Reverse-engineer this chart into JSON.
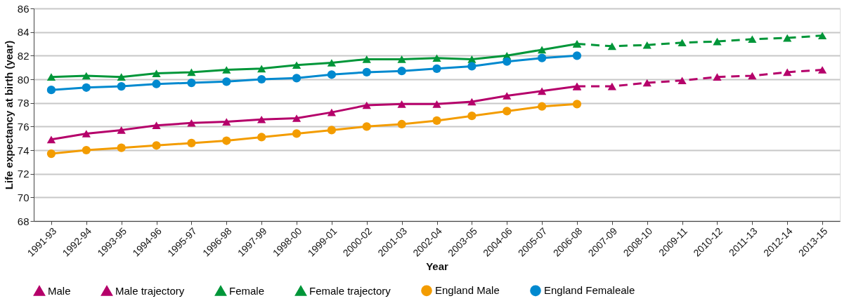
{
  "chart_data": {
    "type": "line",
    "xlabel": "Year",
    "ylabel": "Life expectancy at birth (year)",
    "categories": [
      "1991-93",
      "1992-94",
      "1993-95",
      "1994-96",
      "1995-97",
      "1996-98",
      "1997-99",
      "1998-00",
      "1999-01",
      "2000-02",
      "2001-03",
      "2002-04",
      "2003-05",
      "2004-06",
      "2005-07",
      "2006-08",
      "2007-09",
      "2008-10",
      "2009-11",
      "2010-12",
      "2011-13",
      "2012-14",
      "2013-15"
    ],
    "ylim": [
      68,
      86
    ],
    "yticks": [
      68,
      70,
      72,
      74,
      76,
      78,
      80,
      82,
      84,
      86
    ],
    "grid": "y",
    "legend": "bottom",
    "series": [
      {
        "name": "Male",
        "color": "#b5006a",
        "marker": "triangle",
        "line_style": "solid",
        "values": [
          74.9,
          75.4,
          75.7,
          76.1,
          76.3,
          76.4,
          76.6,
          76.7,
          77.2,
          77.8,
          77.9,
          77.9,
          78.1,
          78.6,
          79.0,
          79.4,
          null,
          null,
          null,
          null,
          null,
          null,
          null
        ]
      },
      {
        "name": "Male trajectory",
        "color": "#b5006a",
        "marker": "triangle",
        "line_style": "dashed",
        "values": [
          null,
          null,
          null,
          null,
          null,
          null,
          null,
          null,
          null,
          null,
          null,
          null,
          null,
          null,
          null,
          79.4,
          79.4,
          79.7,
          79.9,
          80.2,
          80.3,
          80.6,
          80.8
        ]
      },
      {
        "name": "Female",
        "color": "#009639",
        "marker": "triangle",
        "line_style": "solid",
        "values": [
          80.2,
          80.3,
          80.2,
          80.5,
          80.6,
          80.8,
          80.9,
          81.2,
          81.4,
          81.7,
          81.7,
          81.8,
          81.7,
          82.0,
          82.5,
          83.0,
          null,
          null,
          null,
          null,
          null,
          null,
          null
        ]
      },
      {
        "name": "Female trajectory",
        "color": "#009639",
        "marker": "triangle",
        "line_style": "dashed",
        "values": [
          null,
          null,
          null,
          null,
          null,
          null,
          null,
          null,
          null,
          null,
          null,
          null,
          null,
          null,
          null,
          83.0,
          82.8,
          82.9,
          83.1,
          83.2,
          83.4,
          83.5,
          83.7
        ]
      },
      {
        "name": "England Male",
        "color": "#f39c00",
        "marker": "circle",
        "line_style": "solid",
        "values": [
          73.7,
          74.0,
          74.2,
          74.4,
          74.6,
          74.8,
          75.1,
          75.4,
          75.7,
          76.0,
          76.2,
          76.5,
          76.9,
          77.3,
          77.7,
          77.9,
          null,
          null,
          null,
          null,
          null,
          null,
          null
        ]
      },
      {
        "name": "England Femaleale",
        "color": "#0089cf",
        "marker": "circle",
        "line_style": "solid",
        "values": [
          79.1,
          79.3,
          79.4,
          79.6,
          79.7,
          79.8,
          80.0,
          80.1,
          80.4,
          80.6,
          80.7,
          80.9,
          81.1,
          81.5,
          81.8,
          82.0,
          null,
          null,
          null,
          null,
          null,
          null,
          null
        ]
      }
    ]
  }
}
